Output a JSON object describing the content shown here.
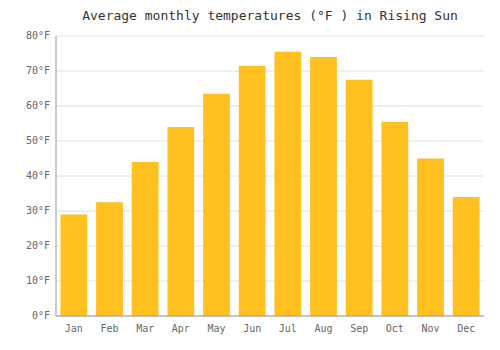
{
  "chart_data": {
    "type": "bar",
    "title": "Average monthly temperatures (°F ) in Rising Sun",
    "categories": [
      "Jan",
      "Feb",
      "Mar",
      "Apr",
      "May",
      "Jun",
      "Jul",
      "Aug",
      "Sep",
      "Oct",
      "Nov",
      "Dec"
    ],
    "values": [
      29,
      32.5,
      44,
      54,
      63.5,
      71.5,
      75.5,
      74,
      67.5,
      55.5,
      45,
      34
    ],
    "color": "#FFC020",
    "ylim": [
      0,
      80
    ],
    "yticks": [
      {
        "value": 0,
        "label": "0°F"
      },
      {
        "value": 10,
        "label": "10°F"
      },
      {
        "value": 20,
        "label": "20°F"
      },
      {
        "value": 30,
        "label": "30°F"
      },
      {
        "value": 40,
        "label": "40°F"
      },
      {
        "value": 50,
        "label": "50°F"
      },
      {
        "value": 60,
        "label": "60°F"
      },
      {
        "value": 70,
        "label": "70°F"
      },
      {
        "value": 80,
        "label": "80°F"
      }
    ],
    "grid": true
  }
}
